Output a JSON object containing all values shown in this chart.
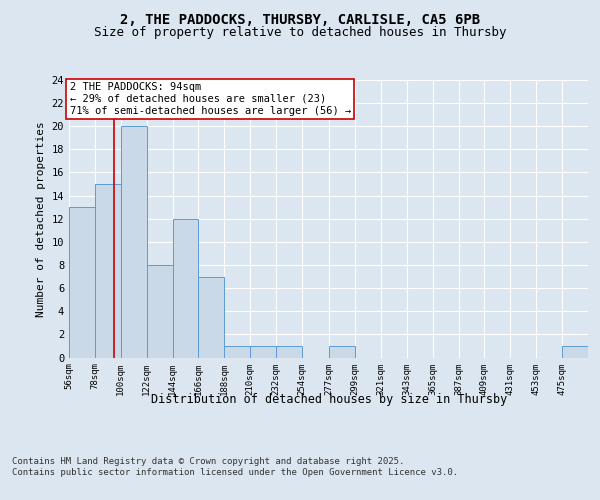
{
  "title_line1": "2, THE PADDOCKS, THURSBY, CARLISLE, CA5 6PB",
  "title_line2": "Size of property relative to detached houses in Thursby",
  "xlabel": "Distribution of detached houses by size in Thursby",
  "ylabel": "Number of detached properties",
  "bin_edges": [
    56,
    78,
    100,
    122,
    144,
    166,
    188,
    210,
    232,
    254,
    277,
    299,
    321,
    343,
    365,
    387,
    409,
    431,
    453,
    475,
    497
  ],
  "bar_heights": [
    13,
    15,
    20,
    8,
    12,
    7,
    1,
    1,
    1,
    0,
    1,
    0,
    0,
    0,
    0,
    0,
    0,
    0,
    0,
    1
  ],
  "bar_color": "#c9d9e8",
  "bar_edge_color": "#5b9bd5",
  "property_size": 94,
  "red_line_color": "#cc0000",
  "annotation_text": "2 THE PADDOCKS: 94sqm\n← 29% of detached houses are smaller (23)\n71% of semi-detached houses are larger (56) →",
  "annotation_box_color": "#ffffff",
  "annotation_box_edge": "#cc0000",
  "ylim": [
    0,
    24
  ],
  "yticks": [
    0,
    2,
    4,
    6,
    8,
    10,
    12,
    14,
    16,
    18,
    20,
    22,
    24
  ],
  "bg_color": "#dce6f0",
  "fig_bg_color": "#dce6f0",
  "grid_color": "#ffffff",
  "footer_text": "Contains HM Land Registry data © Crown copyright and database right 2025.\nContains public sector information licensed under the Open Government Licence v3.0.",
  "title_fontsize": 10,
  "subtitle_fontsize": 9,
  "ylabel_fontsize": 8,
  "tick_label_fontsize": 6.5,
  "annotation_fontsize": 7.5,
  "xlabel_fontsize": 8.5,
  "footer_fontsize": 6.5
}
